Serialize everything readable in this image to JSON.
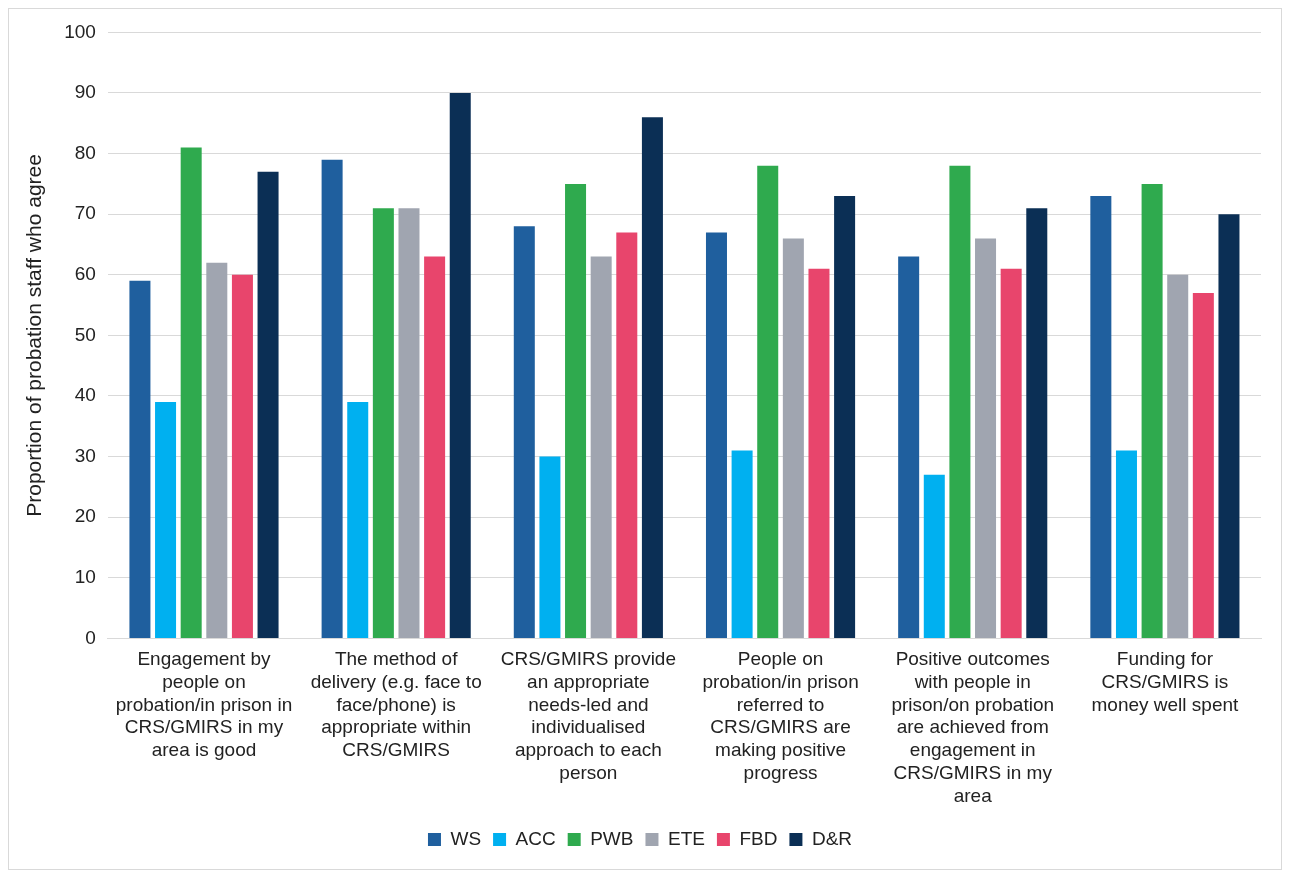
{
  "chart_data": {
    "type": "bar",
    "ylabel": "Proportion of probation staff who agree",
    "categories": [
      "Engagement by people on probation/in prison in CRS/GMIRS in my area is good",
      "The method of delivery (e.g. face to face/phone) is appropriate within CRS/GMIRS",
      "CRS/GMIRS provide an appropriate needs-led and individualised approach to each person",
      "People on probation/in prison referred to CRS/GMIRS are making positive progress",
      "Positive outcomes with people in prison/on probation are achieved from engagement in CRS/GMIRS in my area",
      "Funding for CRS/GMIRS is money well spent"
    ],
    "series": [
      {
        "name": "WS",
        "color": "#1f5f9e",
        "values": [
          59,
          79,
          68,
          67,
          63,
          73
        ]
      },
      {
        "name": "ACC",
        "color": "#00b0f0",
        "values": [
          39,
          39,
          30,
          31,
          27,
          31
        ]
      },
      {
        "name": "PWB",
        "color": "#2faa4e",
        "values": [
          81,
          71,
          75,
          78,
          78,
          75
        ]
      },
      {
        "name": "ETE",
        "color": "#a0a5b0",
        "values": [
          62,
          71,
          63,
          66,
          66,
          60
        ]
      },
      {
        "name": "FBD",
        "color": "#e8456c",
        "values": [
          60,
          63,
          67,
          61,
          61,
          57
        ]
      },
      {
        "name": "D&R",
        "color": "#0b2f55",
        "values": [
          77,
          90,
          86,
          73,
          71,
          70
        ]
      }
    ],
    "ylim": [
      0,
      100
    ],
    "yticks": [
      0,
      10,
      20,
      30,
      40,
      50,
      60,
      70,
      80,
      90,
      100
    ],
    "grid": "y",
    "legend": "bottom"
  }
}
